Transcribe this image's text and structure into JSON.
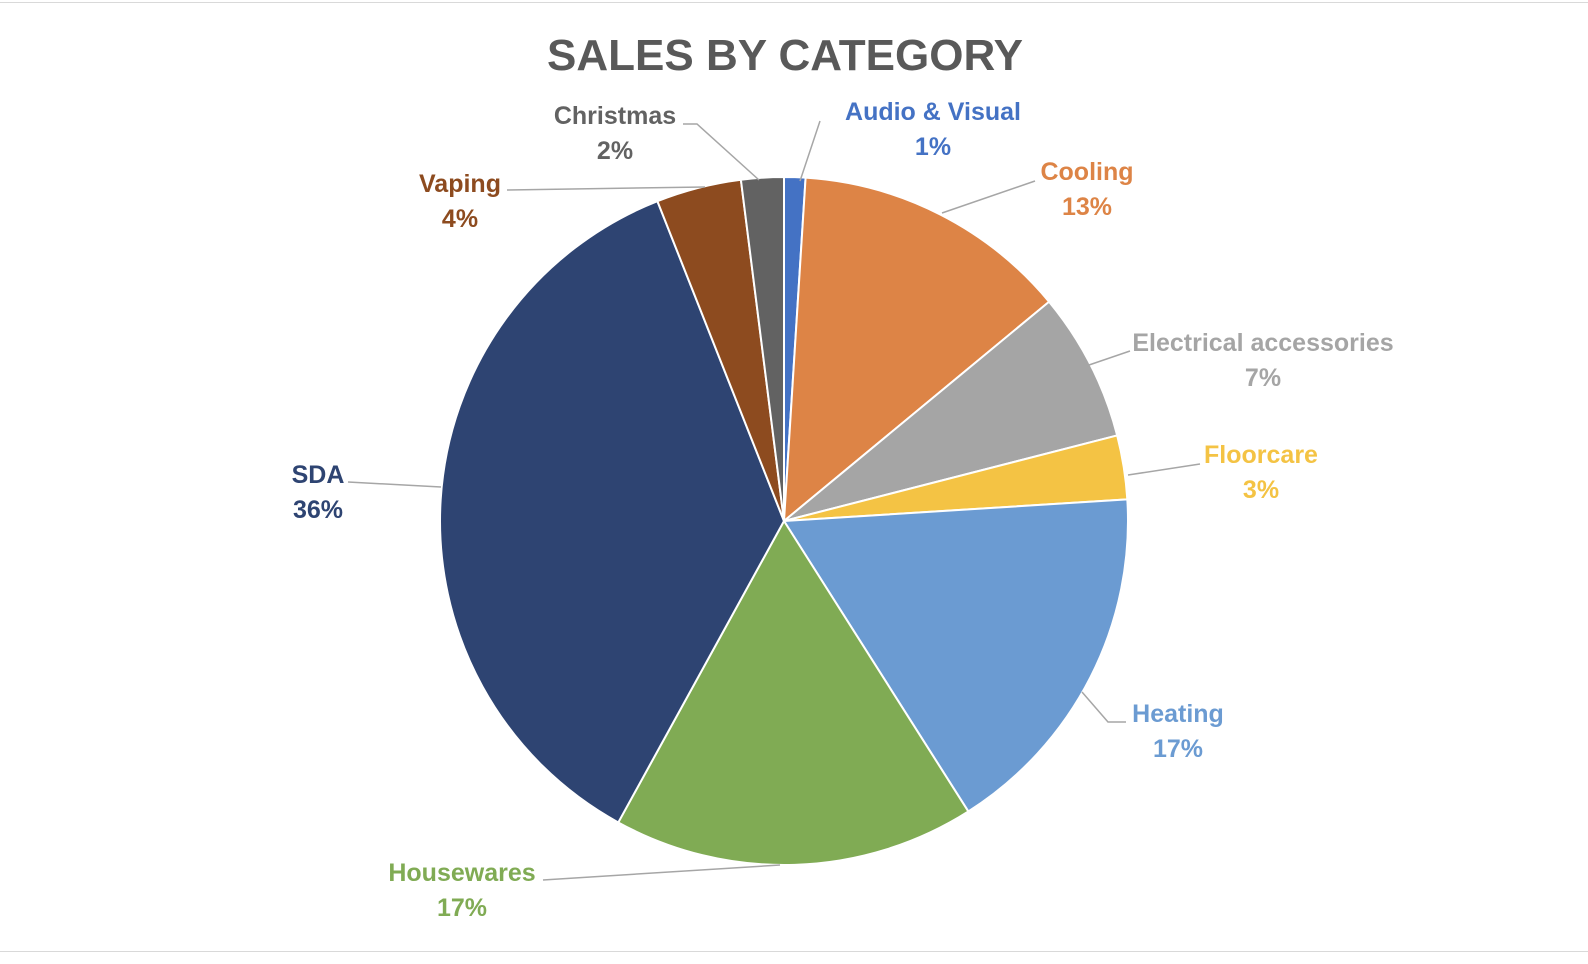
{
  "chart_data": {
    "type": "pie",
    "title": "SALES BY CATEGORY",
    "slices": [
      {
        "label": "Audio & Visual",
        "value": 1,
        "display": "1%",
        "color": "#4472C4"
      },
      {
        "label": "Cooling",
        "value": 13,
        "display": "13%",
        "color": "#DD8446"
      },
      {
        "label": "Electrical accessories",
        "value": 7,
        "display": "7%",
        "color": "#A5A5A5"
      },
      {
        "label": "Floorcare",
        "value": 3,
        "display": "3%",
        "color": "#F4C344"
      },
      {
        "label": "Heating",
        "value": 17,
        "display": "17%",
        "color": "#6B9BD2"
      },
      {
        "label": "Housewares",
        "value": 17,
        "display": "17%",
        "color": "#80AB54"
      },
      {
        "label": "SDA",
        "value": 36,
        "display": "36%",
        "color": "#2E4472"
      },
      {
        "label": "Vaping",
        "value": 4,
        "display": "4%",
        "color": "#8D4B1F"
      },
      {
        "label": "Christmas",
        "value": 2,
        "display": "2%",
        "color": "#626262"
      }
    ],
    "legend": "none",
    "data_labels": "outside with leader lines"
  }
}
